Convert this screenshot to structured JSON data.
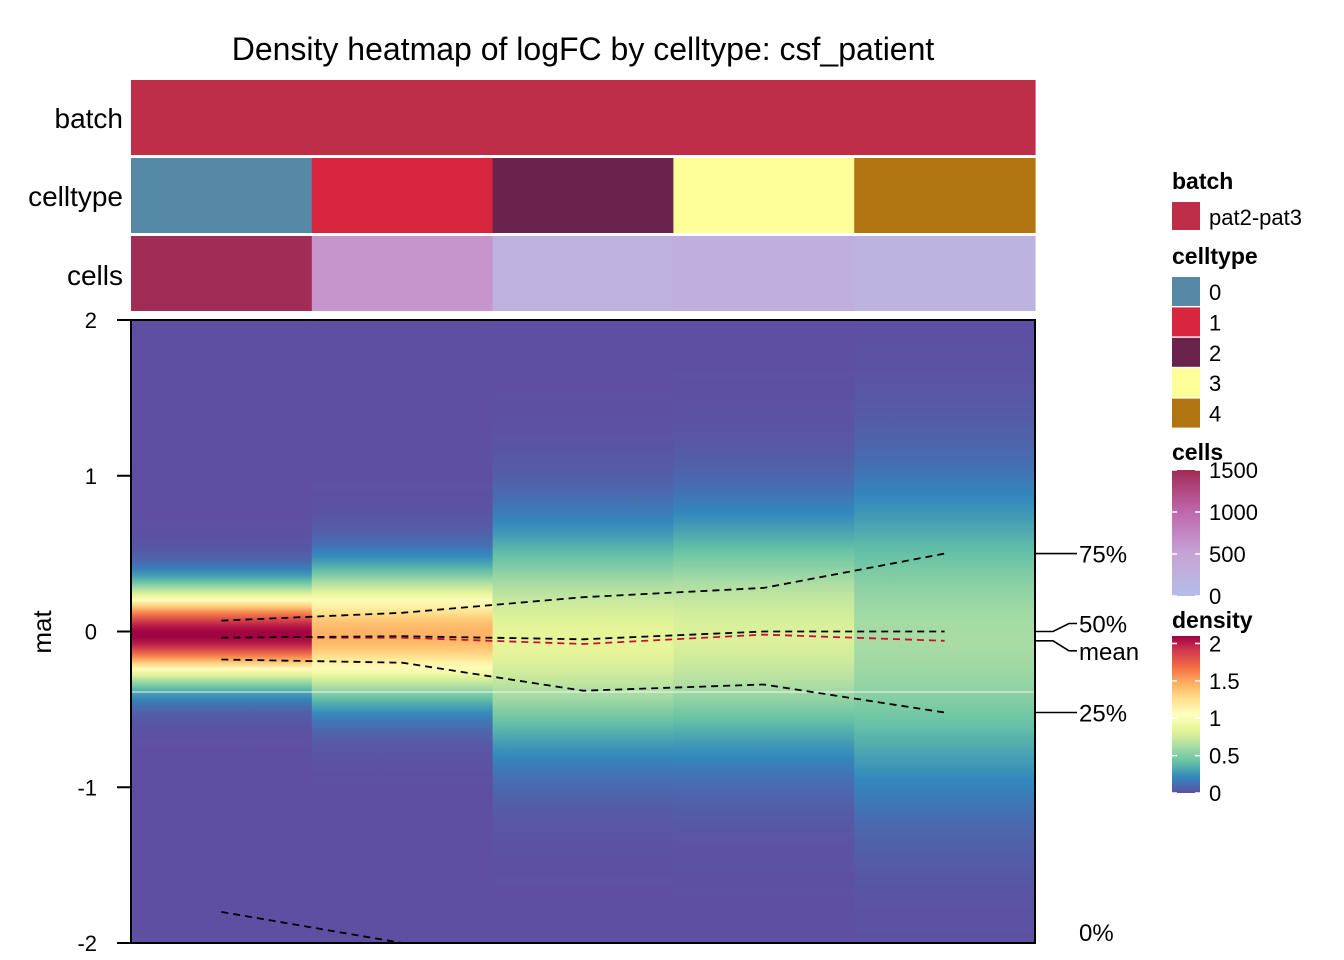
{
  "chart_data": {
    "type": "heatmap",
    "title": "Density heatmap of logFC by celltype: csf_patient",
    "ylabel": "mat",
    "ylim": [
      -2,
      2
    ],
    "yticks": [
      "2",
      "1",
      "0",
      "-1",
      "-2"
    ],
    "columns": [
      "0",
      "1",
      "2",
      "3",
      "4"
    ],
    "annotations": {
      "batch": {
        "label": "batch",
        "values": [
          "pat2-pat3",
          "pat2-pat3",
          "pat2-pat3",
          "pat2-pat3",
          "pat2-pat3"
        ]
      },
      "celltype": {
        "label": "celltype",
        "values": [
          "0",
          "1",
          "2",
          "3",
          "4"
        ]
      },
      "cells": {
        "label": "cells",
        "values": [
          1500,
          620,
          250,
          280,
          200
        ]
      }
    },
    "density_profiles": [
      {
        "celltype": "0",
        "mu": -0.02,
        "sigma": 0.19,
        "peak": 2.1
      },
      {
        "celltype": "1",
        "mu": -0.02,
        "sigma": 0.26,
        "peak": 1.45
      },
      {
        "celltype": "2",
        "mu": -0.05,
        "sigma": 0.45,
        "peak": 0.85
      },
      {
        "celltype": "3",
        "mu": -0.02,
        "sigma": 0.48,
        "peak": 0.8
      },
      {
        "celltype": "4",
        "mu": -0.05,
        "sigma": 0.62,
        "peak": 0.62
      }
    ],
    "quantiles": {
      "q0": [
        -1.8,
        -2.0,
        null,
        null,
        null
      ],
      "q25": [
        -0.18,
        -0.2,
        -0.38,
        -0.34,
        -0.52
      ],
      "q50": [
        -0.04,
        -0.03,
        -0.05,
        0.0,
        0.0
      ],
      "mean": [
        -0.04,
        -0.04,
        -0.08,
        -0.02,
        -0.06
      ],
      "q75": [
        0.07,
        0.12,
        0.22,
        0.28,
        0.5
      ]
    },
    "quantile_labels": {
      "q75": "75%",
      "q50": "50%",
      "mean": "mean",
      "q25": "25%",
      "q0": "0%"
    },
    "legends": {
      "batch": {
        "title": "batch",
        "items": [
          {
            "label": "pat2-pat3",
            "color": "#be2e48"
          }
        ]
      },
      "celltype": {
        "title": "celltype",
        "items": [
          {
            "label": "0",
            "color": "#5589a6"
          },
          {
            "label": "1",
            "color": "#d7263d"
          },
          {
            "label": "2",
            "color": "#6a234c"
          },
          {
            "label": "3",
            "color": "#ffff99"
          },
          {
            "label": "4",
            "color": "#b07410"
          }
        ]
      },
      "cells": {
        "title": "cells",
        "ticks": [
          "1500",
          "1000",
          "500",
          "0"
        ],
        "range": [
          0,
          1500
        ]
      },
      "density": {
        "title": "density",
        "ticks": [
          "2",
          "1.5",
          "1",
          "0.5",
          "0"
        ],
        "range": [
          0,
          2.1
        ]
      }
    },
    "colors": {
      "batch": "#be2e48",
      "cells_scale": [
        "#b4bde8",
        "#c7a3d6",
        "#be68ae",
        "#a12c55"
      ],
      "density_scale": [
        "#5e4fa2",
        "#3288bd",
        "#66c2a5",
        "#abdda4",
        "#e6f598",
        "#ffffbf",
        "#fee08b",
        "#fdae61",
        "#f46d43",
        "#d53e4f",
        "#9e0142"
      ],
      "mean_line": "#c8102e",
      "quantile_line": "#000000"
    }
  }
}
